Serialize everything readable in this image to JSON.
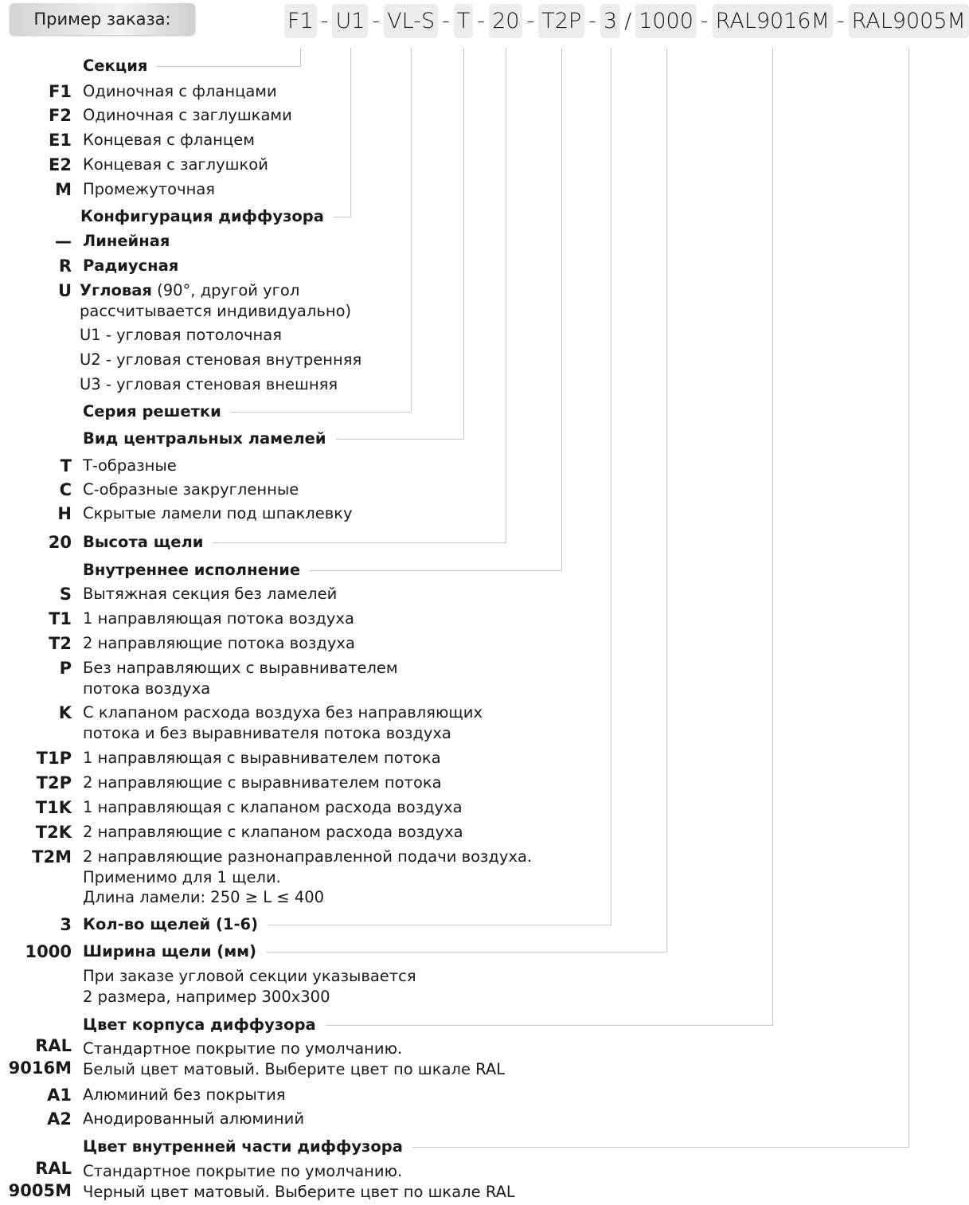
{
  "order_label": "Пример заказа:",
  "order_code": {
    "parts": [
      "F1",
      "U1",
      "VL-S",
      "T",
      "20",
      "T2P",
      "3",
      "1000",
      "RAL9016M",
      "RAL9005M"
    ],
    "separators": [
      "-",
      "-",
      "-",
      "-",
      "-",
      "-",
      "/",
      "-",
      "-"
    ]
  },
  "sections": [
    {
      "code": "",
      "heading": "Секция",
      "items": [
        {
          "code": "F1",
          "lines": [
            "Одиночная с фланцами"
          ]
        },
        {
          "code": "F2",
          "lines": [
            "Одиночная с заглушками"
          ]
        },
        {
          "code": "E1",
          "lines": [
            "Концевая с фланцем"
          ]
        },
        {
          "code": "E2",
          "lines": [
            "Концевая с заглушкой"
          ]
        },
        {
          "code": "M",
          "lines": [
            "Промежуточная"
          ]
        }
      ]
    },
    {
      "code": "",
      "heading": "Конфигурация диффузора",
      "items": [
        {
          "code": "—",
          "bold": "Линейная",
          "lines": []
        },
        {
          "code": "R",
          "bold": "Радиусная",
          "lines": []
        },
        {
          "code": "U",
          "bold": "Угловая",
          "lines": [
            " (90°, другой угол",
            "рассчитывается индивидуально)"
          ]
        },
        {
          "code": "",
          "lines": [
            "U1 - угловая потолочная"
          ]
        },
        {
          "code": "",
          "lines": [
            "U2 - угловая стеновая внутренняя"
          ]
        },
        {
          "code": "",
          "lines": [
            "U3 - угловая стеновая внешняя"
          ]
        }
      ]
    },
    {
      "code": "",
      "heading": "Серия решетки",
      "items": []
    },
    {
      "code": "",
      "heading": "Вид центральных ламелей",
      "items": [
        {
          "code": "T",
          "lines": [
            "Т-образные"
          ]
        },
        {
          "code": "C",
          "lines": [
            "С-образные закругленные"
          ]
        },
        {
          "code": "H",
          "lines": [
            "Скрытые ламели под шпаклевку"
          ]
        }
      ]
    },
    {
      "code": "20",
      "heading": "Высота щели",
      "items": []
    },
    {
      "code": "",
      "heading": "Внутреннее исполнение",
      "items": [
        {
          "code": "S",
          "lines": [
            "Вытяжная секция без ламелей"
          ]
        },
        {
          "code": "T1",
          "lines": [
            "1 направляющая потока воздуха"
          ]
        },
        {
          "code": "T2",
          "lines": [
            "2 направляющие потока воздуха"
          ]
        },
        {
          "code": "P",
          "lines": [
            "Без направляющих с выравнивателем",
            "потока воздуха"
          ]
        },
        {
          "code": "K",
          "lines": [
            "С клапаном расхода воздуха без направляющих",
            "потока и без выравнивателя потока воздуха"
          ]
        },
        {
          "code": "T1P",
          "lines": [
            "1 направляющая с выравнивателем потока"
          ]
        },
        {
          "code": "T2P",
          "lines": [
            "2 направляющие с выравнивателем потока"
          ]
        },
        {
          "code": "T1K",
          "lines": [
            "1 направляющая с клапаном расхода воздуха"
          ]
        },
        {
          "code": "T2K",
          "lines": [
            "2 направляющие с клапаном расхода воздуха"
          ]
        },
        {
          "code": "T2M",
          "lines": [
            "2 направляющие разнонаправленной подачи воздуха.",
            "Применимо для 1 щели.",
            "Длина ламели: 250 ≥ L ≤ 400"
          ]
        }
      ]
    },
    {
      "code": "3",
      "heading": "Кол-во щелей (1-6)",
      "items": []
    },
    {
      "code": "1000",
      "heading": "Ширина щели (мм)",
      "items": [
        {
          "code": "",
          "lines": [
            "При заказе угловой секции указывается",
            "2 размера, например 300х300"
          ]
        }
      ]
    },
    {
      "code": "",
      "heading": "Цвет корпуса диффузора",
      "items": [
        {
          "code": "RAL",
          "code2": "9016M",
          "lines": [
            "Стандартное покрытие по умолчанию.",
            "Белый цвет матовый. Выберите цвет по шкале RAL"
          ]
        },
        {
          "code": "A1",
          "lines": [
            "Алюминий без покрытия"
          ]
        },
        {
          "code": "A2",
          "lines": [
            "Анодированный алюминий"
          ]
        }
      ]
    },
    {
      "code": "",
      "heading": "Цвет внутренней части диффузора",
      "items": [
        {
          "code": "RAL",
          "code2": "9005M",
          "lines": [
            "Стандартное покрытие по умолчанию.",
            "Черный цвет матовый. Выберите цвет по шкале RAL"
          ]
        }
      ]
    }
  ]
}
